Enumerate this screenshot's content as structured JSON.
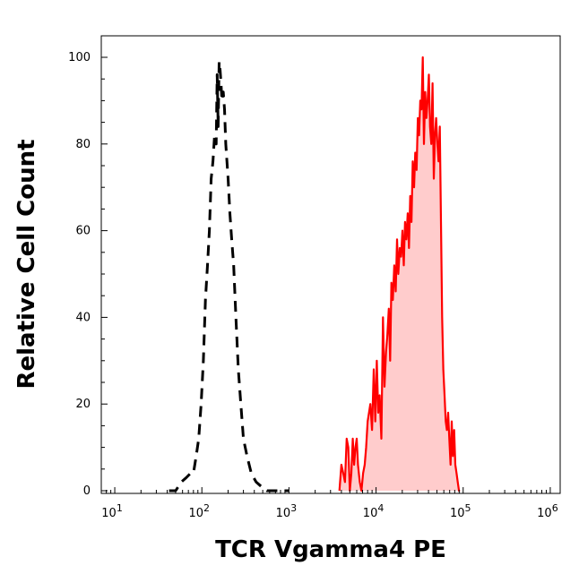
{
  "chart_data": {
    "type": "area",
    "xlabel": "TCR Vgamma4 PE",
    "ylabel": "Relative Cell Count",
    "x_scale": "log",
    "xlim": [
      7,
      1300000
    ],
    "ylim": [
      0,
      100
    ],
    "x_ticks": [
      {
        "value": 10,
        "label": "10",
        "exp": "1"
      },
      {
        "value": 100,
        "label": "10",
        "exp": "2"
      },
      {
        "value": 1000,
        "label": "10",
        "exp": "3"
      },
      {
        "value": 10000,
        "label": "10",
        "exp": "4"
      },
      {
        "value": 100000,
        "label": "10",
        "exp": "5"
      },
      {
        "value": 1000000,
        "label": "10",
        "exp": "6"
      }
    ],
    "y_ticks": [
      {
        "value": 0,
        "label": "0"
      },
      {
        "value": 20,
        "label": "20"
      },
      {
        "value": 40,
        "label": "40"
      },
      {
        "value": 60,
        "label": "60"
      },
      {
        "value": 80,
        "label": "80"
      },
      {
        "value": 100,
        "label": "100"
      }
    ],
    "grid": false,
    "series": [
      {
        "style": "dashed",
        "color": "#000000",
        "fill": "none",
        "x": [
          42,
          50,
          58,
          66,
          74,
          80,
          86,
          92,
          98,
          104,
          110,
          116,
          122,
          128,
          134,
          140,
          146,
          150,
          154,
          158,
          162,
          166,
          170,
          176,
          182,
          188,
          194,
          200,
          210,
          220,
          232,
          246,
          262,
          280,
          300,
          330,
          370,
          420,
          480,
          560,
          680,
          800,
          1000
        ],
        "y": [
          0,
          0,
          2,
          3,
          4,
          4,
          8,
          12,
          20,
          30,
          44,
          52,
          60,
          72,
          76,
          82,
          80,
          96,
          84,
          99,
          97,
          94,
          90,
          92,
          88,
          80,
          76,
          72,
          64,
          58,
          52,
          40,
          28,
          20,
          12,
          8,
          4,
          2,
          1,
          0,
          0,
          0,
          0
        ]
      },
      {
        "style": "solid",
        "color": "#ff0000",
        "fill": "#ffcccc",
        "x": [
          3800,
          4000,
          4200,
          4400,
          4600,
          4800,
          5000,
          5200,
          5400,
          5600,
          5800,
          6000,
          6200,
          6500,
          6800,
          7100,
          7400,
          7700,
          8000,
          8300,
          8600,
          9000,
          9400,
          9800,
          10200,
          10600,
          11000,
          11500,
          12000,
          12500,
          13000,
          13500,
          14000,
          14500,
          15000,
          15600,
          16200,
          16800,
          17400,
          18000,
          18700,
          19400,
          20100,
          20800,
          21500,
          22300,
          23100,
          23900,
          24700,
          25500,
          26400,
          27300,
          28200,
          29200,
          30200,
          31200,
          32200,
          33300,
          34400,
          35500,
          36700,
          37900,
          39100,
          40400,
          41700,
          43100,
          44500,
          46000,
          47500,
          49000,
          50600,
          52200,
          53900,
          55600,
          57400,
          59200,
          61100,
          63100,
          65100,
          67200,
          69400,
          71600,
          73900,
          76300,
          78800,
          81300,
          84000,
          86700,
          89500,
          92000
        ],
        "y": [
          0,
          6,
          4,
          2,
          12,
          10,
          0,
          4,
          12,
          6,
          10,
          12,
          6,
          2,
          0,
          4,
          6,
          10,
          16,
          18,
          20,
          14,
          28,
          16,
          30,
          18,
          22,
          12,
          40,
          24,
          32,
          36,
          42,
          30,
          48,
          44,
          52,
          46,
          58,
          50,
          56,
          54,
          60,
          52,
          62,
          58,
          64,
          56,
          68,
          62,
          76,
          70,
          78,
          74,
          86,
          82,
          90,
          88,
          100,
          80,
          92,
          86,
          90,
          96,
          84,
          80,
          94,
          72,
          82,
          86,
          80,
          76,
          84,
          62,
          40,
          28,
          22,
          16,
          14,
          18,
          12,
          6,
          16,
          8,
          14,
          6,
          4,
          2,
          0,
          0
        ]
      }
    ]
  }
}
